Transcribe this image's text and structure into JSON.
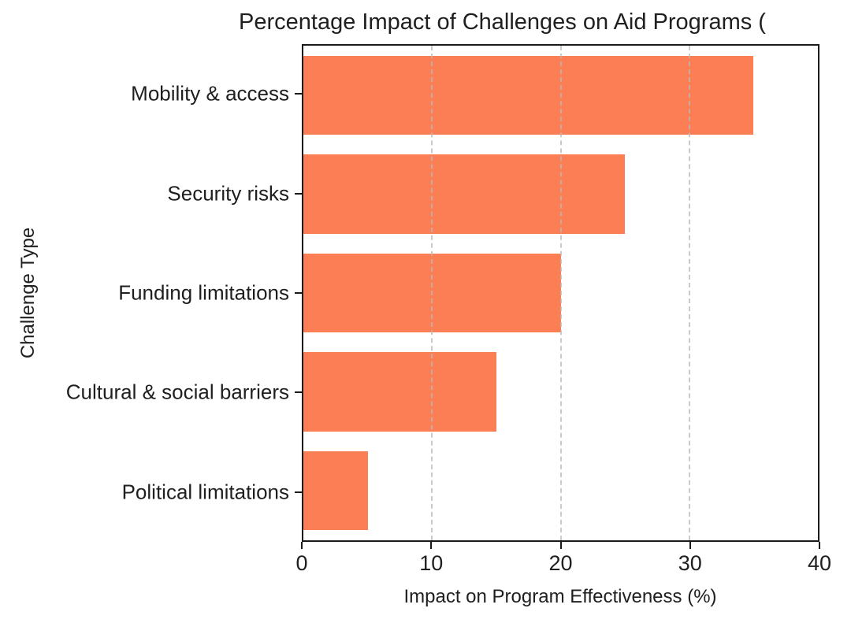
{
  "chart_data": {
    "type": "bar",
    "orientation": "horizontal",
    "title": "Percentage Impact of Challenges on Aid Programs (",
    "title_clipped": true,
    "xlabel": "Impact on Program Effectiveness (%)",
    "ylabel": "Challenge Type",
    "categories": [
      "Mobility & access",
      "Security risks",
      "Funding limitations",
      "Cultural & social barriers",
      "Political limitations"
    ],
    "values": [
      35,
      25,
      20,
      15,
      5
    ],
    "xlim": [
      0,
      40
    ],
    "xticks": [
      0,
      10,
      20,
      30,
      40
    ],
    "grid": "dashed vertical gridlines drawn over bars",
    "legend": "none",
    "bar_color": "#FB7E55",
    "gridline_color": "#B9B9B9",
    "axis_color": "#1A1A1A",
    "text_color": "#1F1F1F",
    "background_color": "#FFFFFF"
  }
}
